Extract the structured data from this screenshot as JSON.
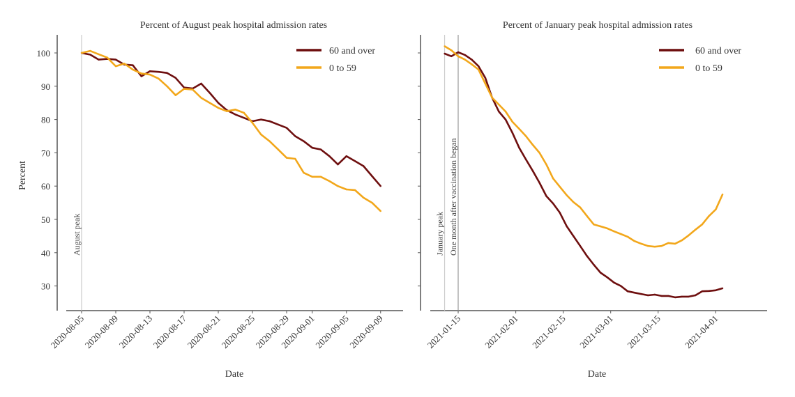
{
  "colors": {
    "over60": "#6e0f0f",
    "under60": "#f2a71b",
    "axis": "#555555",
    "annotation_light": "#cccccc",
    "annotation_dark": "#999999"
  },
  "chart_data": [
    {
      "type": "line",
      "title": "Percent of August peak hospital admission rates",
      "xlabel": "Date",
      "ylabel": "Percent",
      "ylim": [
        22.5,
        105
      ],
      "yticks": [
        100,
        90,
        80,
        70,
        60,
        50,
        40,
        30
      ],
      "xticks": [
        "2020-08-05",
        "2020-08-09",
        "2020-08-13",
        "2020-08-17",
        "2020-08-21",
        "2020-08-25",
        "2020-08-29",
        "2020-09-01",
        "2020-09-05",
        "2020-09-09"
      ],
      "legend": {
        "position": "top-right",
        "entries": [
          "60 and over",
          "0 to 59"
        ]
      },
      "annotations": [
        {
          "date": "2020-08-05",
          "label": "August peak"
        }
      ],
      "x": [
        "2020-08-05",
        "2020-08-06",
        "2020-08-07",
        "2020-08-08",
        "2020-08-09",
        "2020-08-10",
        "2020-08-11",
        "2020-08-12",
        "2020-08-13",
        "2020-08-14",
        "2020-08-15",
        "2020-08-16",
        "2020-08-17",
        "2020-08-18",
        "2020-08-19",
        "2020-08-20",
        "2020-08-21",
        "2020-08-22",
        "2020-08-23",
        "2020-08-24",
        "2020-08-25",
        "2020-08-26",
        "2020-08-27",
        "2020-08-28",
        "2020-08-29",
        "2020-08-30",
        "2020-08-31",
        "2020-09-01",
        "2020-09-02",
        "2020-09-03",
        "2020-09-04",
        "2020-09-05",
        "2020-09-06",
        "2020-09-07",
        "2020-09-08",
        "2020-09-09"
      ],
      "series": [
        {
          "name": "60 and over",
          "values": [
            100,
            99.5,
            98,
            98.2,
            98,
            96.5,
            96.3,
            93,
            94.5,
            94.3,
            94,
            92.5,
            89.6,
            89.3,
            90.8,
            88,
            85,
            82.8,
            81.5,
            80.5,
            79.5,
            80,
            79.5,
            78.5,
            77.5,
            75,
            73.5,
            71.5,
            71,
            69,
            66.5,
            69,
            67.5,
            66,
            63,
            60
          ]
        },
        {
          "name": "0 to 59",
          "values": [
            100,
            100.6,
            99.6,
            98.6,
            96,
            96.8,
            95,
            93.8,
            93.5,
            92.3,
            90,
            87.3,
            89.2,
            89,
            86.5,
            85,
            83.5,
            82.5,
            83,
            82,
            79,
            75.5,
            73.5,
            71,
            68.5,
            68.2,
            64,
            62.8,
            62.8,
            61.5,
            60,
            59,
            58.8,
            56.5,
            55,
            52.5
          ]
        }
      ]
    },
    {
      "type": "line",
      "title": "Percent of January peak hospital admission rates",
      "xlabel": "Date",
      "ylabel": "",
      "ylim": [
        22.5,
        105
      ],
      "yticks": [
        100,
        90,
        80,
        70,
        60,
        50,
        40,
        30
      ],
      "xticks": [
        "2021-01-15",
        "2021-02-01",
        "2021-02-15",
        "2021-03-01",
        "2021-03-15",
        "2021-04-01"
      ],
      "legend": {
        "position": "top-right",
        "entries": [
          "60 and over",
          "0 to 59"
        ]
      },
      "annotations": [
        {
          "date": "2021-01-11",
          "label": "January peak"
        },
        {
          "date": "2021-01-15",
          "label": "One month after vaccination began"
        }
      ],
      "x": [
        "2021-01-11",
        "2021-01-13",
        "2021-01-15",
        "2021-01-17",
        "2021-01-19",
        "2021-01-21",
        "2021-01-23",
        "2021-01-25",
        "2021-01-27",
        "2021-01-29",
        "2021-01-31",
        "2021-02-02",
        "2021-02-04",
        "2021-02-06",
        "2021-02-08",
        "2021-02-10",
        "2021-02-12",
        "2021-02-14",
        "2021-02-16",
        "2021-02-18",
        "2021-02-20",
        "2021-02-22",
        "2021-02-24",
        "2021-02-26",
        "2021-02-28",
        "2021-03-02",
        "2021-03-04",
        "2021-03-06",
        "2021-03-08",
        "2021-03-10",
        "2021-03-12",
        "2021-03-14",
        "2021-03-16",
        "2021-03-18",
        "2021-03-20",
        "2021-03-22",
        "2021-03-24",
        "2021-03-26",
        "2021-03-28",
        "2021-03-30",
        "2021-04-01",
        "2021-04-03"
      ],
      "series": [
        {
          "name": "60 and over",
          "values": [
            99.8,
            99,
            100.2,
            99.4,
            98,
            96,
            92.5,
            86.6,
            82.4,
            80,
            76,
            71.5,
            68,
            64.6,
            61,
            57,
            54.8,
            52,
            48,
            45,
            42,
            39,
            36.4,
            34,
            32.6,
            31,
            30,
            28.4,
            28,
            27.6,
            27.2,
            27.4,
            27,
            27,
            26.6,
            26.8,
            26.8,
            27.2,
            28.4,
            28.5,
            28.7,
            29.3
          ]
        },
        {
          "name": "0 to 59",
          "values": [
            102,
            100.8,
            99,
            98,
            96.6,
            95,
            90.8,
            86.6,
            84.5,
            82.4,
            79.3,
            77.2,
            75,
            72.4,
            70,
            66.5,
            62.3,
            59.8,
            57.3,
            55.2,
            53.6,
            51,
            48.5,
            47.9,
            47.3,
            46.4,
            45.6,
            44.8,
            43.5,
            42.7,
            42,
            41.8,
            42,
            42.9,
            42.7,
            43.7,
            45.2,
            46.9,
            48.5,
            51,
            53,
            57.5
          ]
        }
      ]
    }
  ]
}
